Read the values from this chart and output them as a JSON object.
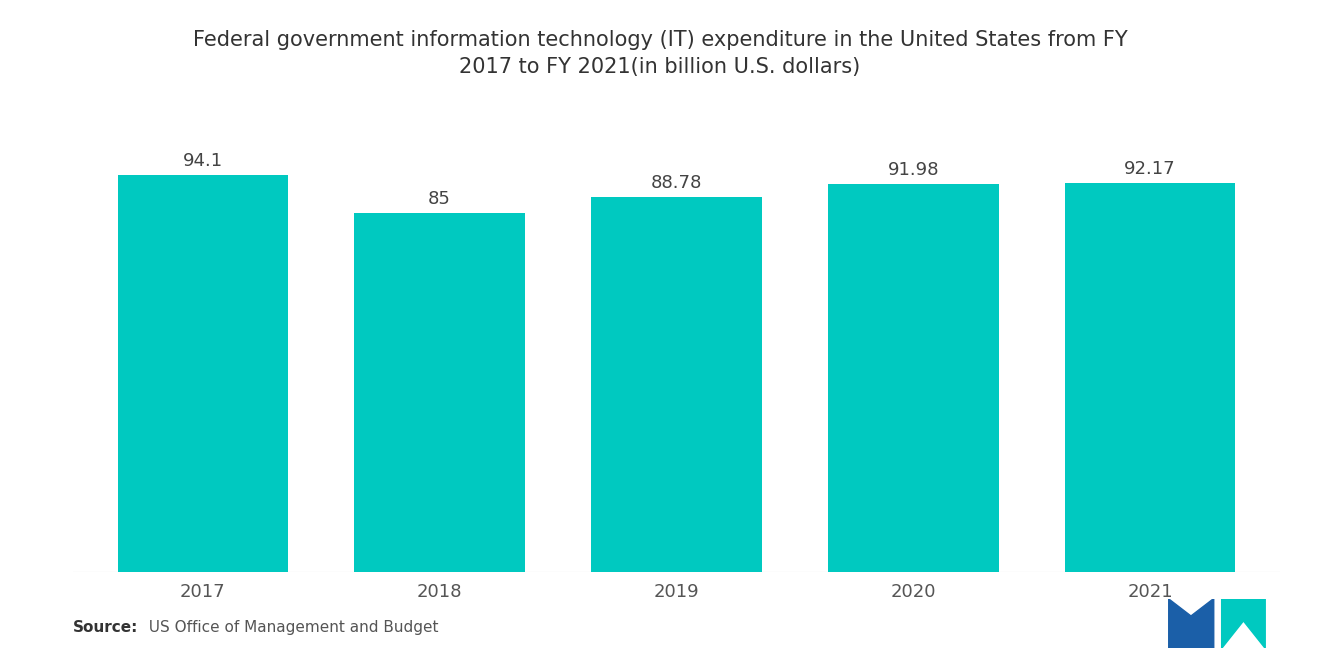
{
  "title_line1": "Federal government information technology (IT) expenditure in the United States from FY",
  "title_line2": "2017 to FY 2021(in billion U.S. dollars)",
  "categories": [
    "2017",
    "2018",
    "2019",
    "2020",
    "2021"
  ],
  "values": [
    94.1,
    85,
    88.78,
    91.98,
    92.17
  ],
  "bar_color": "#00C9C0",
  "value_labels": [
    "94.1",
    "85",
    "88.78",
    "91.98",
    "92.17"
  ],
  "source_bold": "Source:",
  "source_normal": "  US Office of Management and Budget",
  "background_color": "#ffffff",
  "title_fontsize": 15,
  "label_fontsize": 13,
  "tick_fontsize": 13,
  "source_fontsize": 11,
  "ylim": [
    0,
    115
  ],
  "bar_width": 0.72
}
